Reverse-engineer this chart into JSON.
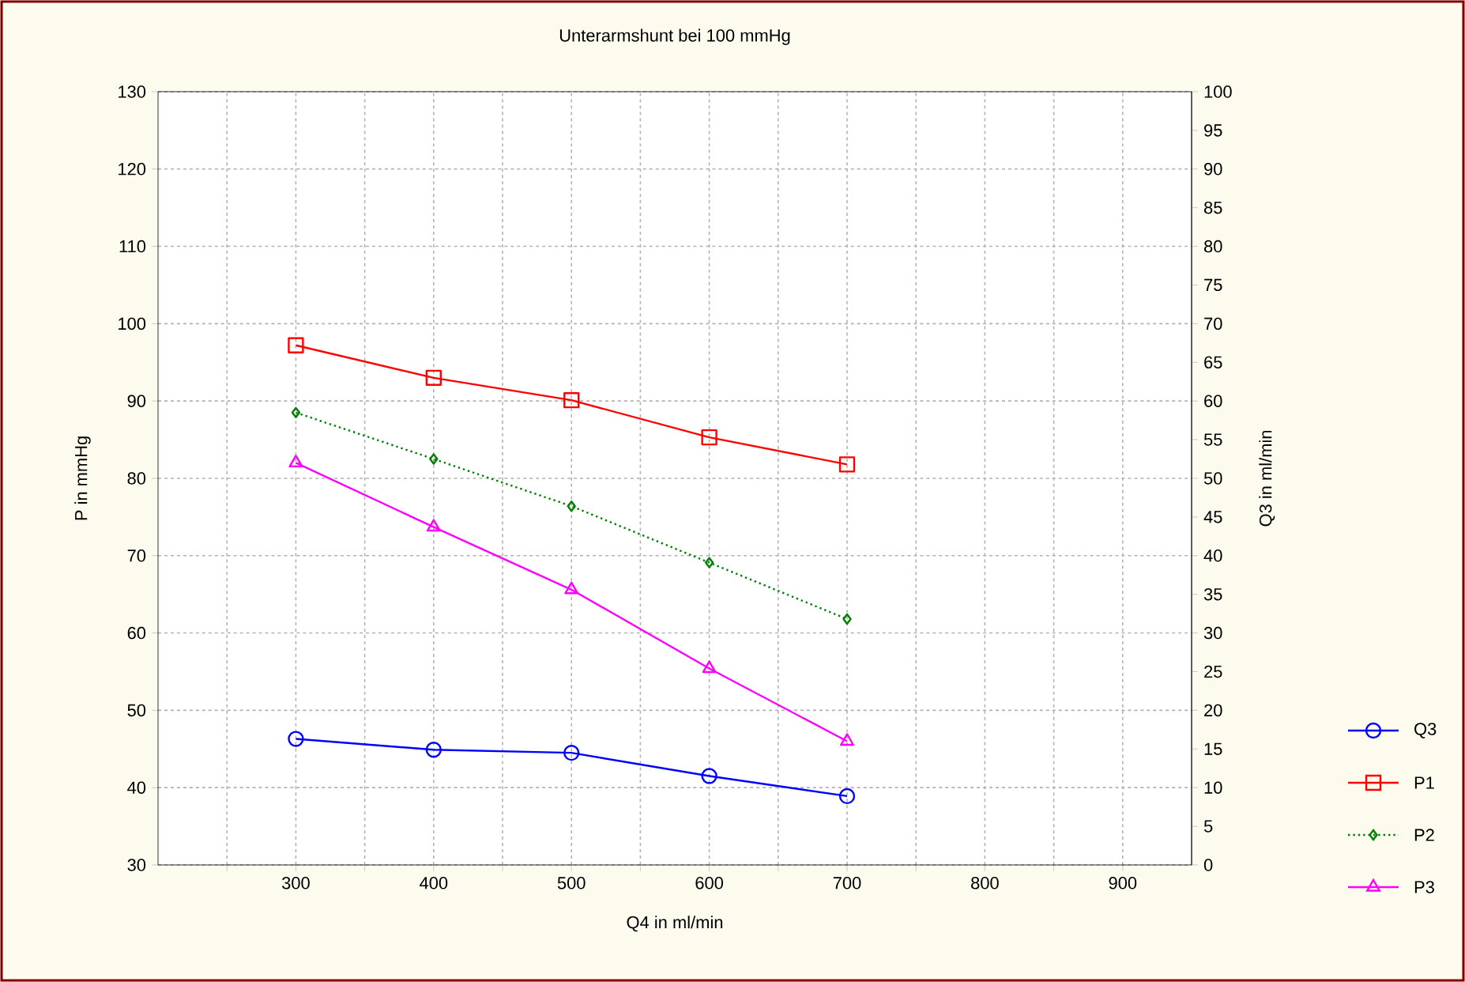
{
  "chart_data": {
    "type": "line",
    "title": "Unterarmshunt bei 100 mmHg",
    "xlabel": "Q4 in ml/min",
    "ylabel": "P in mmHg",
    "y2label": "Q3 in ml/min",
    "x": [
      300,
      400,
      500,
      600,
      700
    ],
    "xlim": [
      200,
      950
    ],
    "xticks": [
      {
        "value": 250,
        "label": null
      },
      300,
      {
        "value": 350,
        "label": null
      },
      400,
      {
        "value": 450,
        "label": null
      },
      500,
      {
        "value": 550,
        "label": null
      },
      600,
      {
        "value": 650,
        "label": null
      },
      700,
      {
        "value": 750,
        "label": null
      },
      800,
      {
        "value": 850,
        "label": null
      },
      900
    ],
    "ylim": [
      30,
      130
    ],
    "yticks": [
      30,
      40,
      50,
      60,
      70,
      80,
      90,
      100,
      110,
      120,
      130
    ],
    "y2lim": [
      0,
      100
    ],
    "y2ticks": [
      0,
      5,
      10,
      15,
      20,
      25,
      30,
      35,
      40,
      45,
      50,
      55,
      60,
      65,
      70,
      75,
      80,
      85,
      90,
      95,
      100
    ],
    "grid": true,
    "legend": "right",
    "series": [
      {
        "name": "Q3",
        "color": "#0000ff",
        "axis": "y2",
        "marker": "circle",
        "line_style": "solid",
        "values": [
          16.3,
          14.9,
          14.5,
          11.5,
          8.9
        ]
      },
      {
        "name": "P1",
        "color": "#ff0000",
        "marker": "square",
        "line_style": "solid",
        "values": [
          97.2,
          93.0,
          90.1,
          85.3,
          81.8
        ]
      },
      {
        "name": "P2",
        "color": "#008000",
        "marker": "diamond",
        "line_style": "dotted",
        "values": [
          88.5,
          82.5,
          76.4,
          69.1,
          61.8
        ]
      },
      {
        "name": "P3",
        "color": "#ff00ff",
        "marker": "triangle",
        "line_style": "solid",
        "values": [
          82.0,
          73.7,
          65.6,
          55.4,
          46.0
        ]
      }
    ]
  }
}
